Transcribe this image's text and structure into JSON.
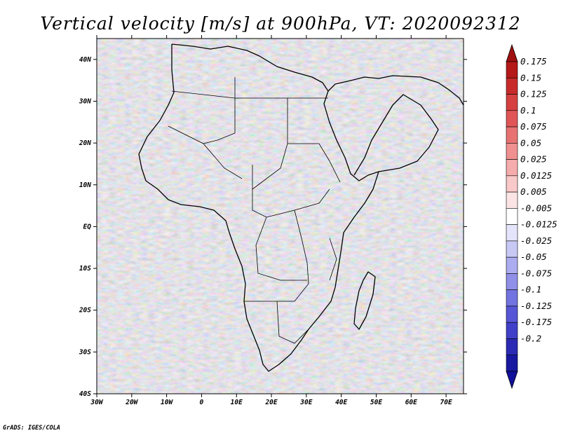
{
  "title": "Vertical velocity [m/s] at 900hPa, VT: 2020092312",
  "credit": "GrADS: IGES/COLA",
  "map": {
    "projection": "lat-lon",
    "lon_range": [
      -30,
      75
    ],
    "lat_range": [
      -40,
      45
    ],
    "x_ticks": [
      "30W",
      "20W",
      "10W",
      "0",
      "10E",
      "20E",
      "30E",
      "40E",
      "50E",
      "60E",
      "70E"
    ],
    "x_tick_values": [
      -30,
      -20,
      -10,
      0,
      10,
      20,
      30,
      40,
      50,
      60,
      70
    ],
    "y_ticks": [
      "40S",
      "30S",
      "20S",
      "10S",
      "EQ",
      "10N",
      "20N",
      "30N",
      "40N"
    ],
    "y_tick_values": [
      -40,
      -30,
      -20,
      -10,
      0,
      10,
      20,
      30,
      40
    ],
    "field": "vertical velocity",
    "level": "900hPa",
    "valid_time": "2020092312"
  },
  "colorbar": {
    "labels": [
      "0.175",
      "0.15",
      "0.125",
      "0.1",
      "0.075",
      "0.05",
      "0.025",
      "0.0125",
      "0.005",
      "-0.005",
      "-0.0125",
      "-0.025",
      "-0.05",
      "-0.075",
      "-0.1",
      "-0.125",
      "-0.175",
      "-0.2"
    ],
    "colors": [
      "#b41818",
      "#c82a2a",
      "#d64040",
      "#e05656",
      "#e87272",
      "#f09090",
      "#f5acac",
      "#f9c8c8",
      "#fce4e4",
      "#ffffff",
      "#e4e4fb",
      "#c8c8f5",
      "#acacf0",
      "#9090e8",
      "#7272e0",
      "#5656d6",
      "#4040c8",
      "#2a2ab4",
      "#1818a0"
    ],
    "top_triangle_color": "#a01010",
    "bottom_triangle_color": "#10109a"
  }
}
